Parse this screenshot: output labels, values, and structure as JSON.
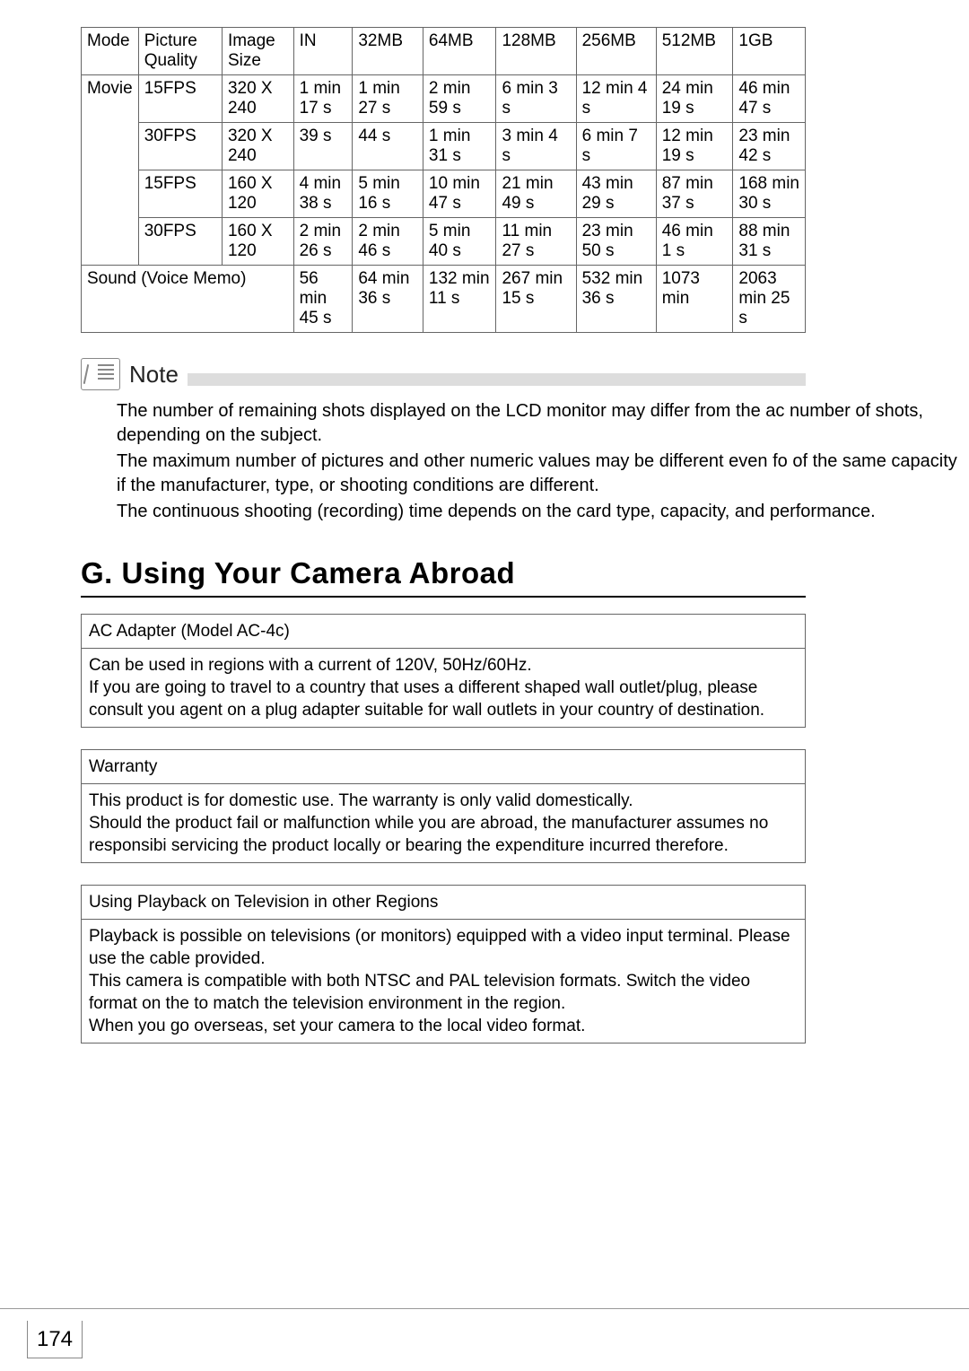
{
  "table": {
    "headers": [
      "Mode",
      "Picture Quality",
      "Image Size",
      "IN",
      "32MB",
      "64MB",
      "128MB",
      "256MB",
      "512MB",
      "1GB"
    ],
    "rows": [
      {
        "mode": "Movie",
        "pq": "15FPS",
        "size": "320 X 240",
        "vals": [
          "1 min 17 s",
          "1 min 27 s",
          "2 min 59 s",
          "6 min 3 s",
          "12 min 4 s",
          "24 min 19 s",
          "46 min 47 s"
        ]
      },
      {
        "mode": "",
        "pq": "30FPS",
        "size": "320 X 240",
        "vals": [
          "39 s",
          "44 s",
          "1 min 31 s",
          "3 min 4 s",
          "6 min 7 s",
          "12 min 19 s",
          "23 min 42 s"
        ]
      },
      {
        "mode": "",
        "pq": "15FPS",
        "size": "160 X 120",
        "vals": [
          "4 min 38 s",
          "5 min 16 s",
          "10 min 47 s",
          "21 min 49 s",
          "43 min 29 s",
          "87 min 37 s",
          "168 min 30 s"
        ]
      },
      {
        "mode": "",
        "pq": "30FPS",
        "size": "160 X 120",
        "vals": [
          "2 min 26 s",
          "2 min 46 s",
          "5 min 40 s",
          "11 min 27 s",
          "23 min 50 s",
          "46 min 1 s",
          "88 min 31 s"
        ]
      },
      {
        "mode": "Sound (Voice Memo)",
        "pq": "",
        "size": "",
        "vals": [
          "56 min 45 s",
          "64 min 36 s",
          "132 min 11 s",
          "267 min 15 s",
          "532 min 36 s",
          "1073 min",
          "2063 min 25 s"
        ]
      }
    ]
  },
  "note": {
    "label": "Note",
    "p1": "The number of remaining shots displayed on the LCD monitor may differ from the ac number of shots, depending on the subject.",
    "p2": "The maximum number of pictures and other numeric values may be different even fo of the same capacity if the manufacturer, type, or shooting conditions are different.",
    "p3": "The continuous shooting (recording) time depends on the card type, capacity, and performance."
  },
  "section": "G. Using Your Camera Abroad",
  "boxes": [
    {
      "title": "AC Adapter (Model AC-4c)",
      "body": "Can be used in regions with a current of 120V, 50Hz/60Hz.\nIf you are going to travel to a country that uses a different shaped wall outlet/plug, please consult you agent on a plug adapter suitable for wall outlets in your country of destination."
    },
    {
      "title": "Warranty",
      "body": "This product is for domestic use. The warranty is only valid domestically.\nShould the product fail or malfunction while you are abroad, the manufacturer assumes no responsibi servicing the product locally or bearing the expenditure incurred therefore."
    },
    {
      "title": "Using Playback on Television in other Regions",
      "body": "Playback is possible on televisions (or monitors) equipped with a video input terminal. Please use the cable provided.\nThis camera is compatible with both NTSC and PAL television formats. Switch the video format on the to match the television environment in the region.\nWhen you go overseas, set your camera to the local video format."
    }
  ],
  "page_number": "174"
}
